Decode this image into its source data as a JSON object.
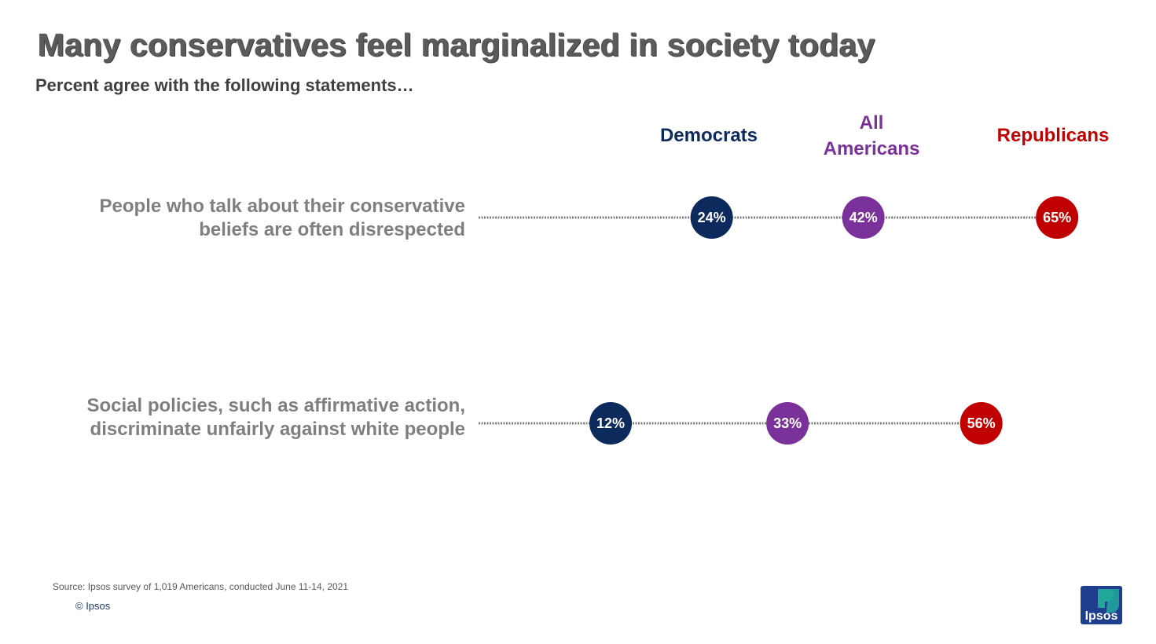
{
  "colors": {
    "democrats": "#0d2a5c",
    "all_americans": "#7a3199",
    "republicans": "#c00000",
    "logo_blue": "#1f3e8e",
    "logo_teal": "#21a79a"
  },
  "footer": {
    "source": "Source: Ipsos survey of 1,019 Americans, conducted June 11-14, 2021",
    "copyright": "© Ipsos",
    "logo_text": "Ipsos"
  },
  "chart_data": {
    "type": "dot",
    "title": "Many conservatives feel marginalized in society today",
    "subtitle": "Percent agree with the following statements…",
    "unit": "%",
    "xlim": [
      0,
      70
    ],
    "categories": [
      "People who talk about their conservative beliefs are often disrespected",
      "Social policies, such as affirmative action, discriminate unfairly against white people"
    ],
    "category_lines": [
      [
        "People who talk about their conservative",
        "beliefs are often disrespected"
      ],
      [
        "Social policies, such as affirmative action,",
        "discriminate unfairly against white people"
      ]
    ],
    "series": [
      {
        "name": "Democrats",
        "label_lines": [
          "Democrats"
        ],
        "color_key": "democrats",
        "values": [
          24,
          12
        ]
      },
      {
        "name": "All Americans",
        "label_lines": [
          "All",
          "Americans"
        ],
        "color_key": "all_americans",
        "values": [
          42,
          33
        ]
      },
      {
        "name": "Republicans",
        "label_lines": [
          "Republicans"
        ],
        "color_key": "republicans",
        "values": [
          65,
          56
        ]
      }
    ]
  }
}
